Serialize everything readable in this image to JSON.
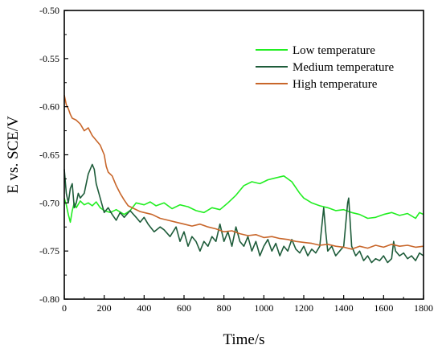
{
  "chart_data": {
    "type": "line",
    "title": "",
    "xlabel": "Time/s",
    "ylabel": "E vs. SCE/V",
    "xlim": [
      0,
      1800
    ],
    "ylim": [
      -0.8,
      -0.5
    ],
    "xticks": [
      0,
      200,
      400,
      600,
      800,
      1000,
      1200,
      1400,
      1600,
      1800
    ],
    "yticks": [
      -0.5,
      -0.55,
      -0.6,
      -0.65,
      -0.7,
      -0.75,
      -0.8
    ],
    "xtick_labels": [
      "0",
      "200",
      "400",
      "600",
      "800",
      "1000",
      "1200",
      "1400",
      "1600",
      "1800"
    ],
    "ytick_labels": [
      "-0.50",
      "-0.55",
      "-0.60",
      "-0.65",
      "-0.70",
      "-0.75",
      "-0.80"
    ],
    "grid": false,
    "legend_position": "top-right",
    "series": [
      {
        "name": "Low temperature",
        "color": "#22ee22",
        "x": [
          0,
          10,
          20,
          30,
          40,
          50,
          60,
          80,
          100,
          120,
          140,
          160,
          180,
          200,
          230,
          260,
          300,
          330,
          360,
          400,
          430,
          460,
          500,
          540,
          580,
          620,
          660,
          700,
          740,
          780,
          820,
          860,
          900,
          940,
          980,
          1020,
          1060,
          1100,
          1140,
          1180,
          1200,
          1240,
          1280,
          1320,
          1360,
          1400,
          1440,
          1480,
          1520,
          1560,
          1600,
          1640,
          1680,
          1720,
          1760,
          1780,
          1800
        ],
        "y": [
          -0.695,
          -0.702,
          -0.712,
          -0.72,
          -0.708,
          -0.7,
          -0.705,
          -0.698,
          -0.702,
          -0.7,
          -0.703,
          -0.699,
          -0.705,
          -0.708,
          -0.71,
          -0.707,
          -0.712,
          -0.708,
          -0.7,
          -0.702,
          -0.699,
          -0.703,
          -0.7,
          -0.706,
          -0.702,
          -0.704,
          -0.708,
          -0.71,
          -0.705,
          -0.707,
          -0.7,
          -0.692,
          -0.682,
          -0.678,
          -0.68,
          -0.676,
          -0.674,
          -0.672,
          -0.678,
          -0.69,
          -0.695,
          -0.7,
          -0.703,
          -0.705,
          -0.708,
          -0.707,
          -0.71,
          -0.712,
          -0.716,
          -0.715,
          -0.712,
          -0.71,
          -0.713,
          -0.711,
          -0.716,
          -0.71,
          -0.712
        ]
      },
      {
        "name": "Medium temperature",
        "color": "#1e5c3a",
        "x": [
          0,
          10,
          20,
          30,
          40,
          50,
          60,
          70,
          80,
          100,
          120,
          140,
          150,
          160,
          180,
          200,
          220,
          240,
          260,
          280,
          300,
          330,
          360,
          380,
          400,
          420,
          450,
          480,
          500,
          530,
          560,
          580,
          600,
          620,
          640,
          660,
          680,
          700,
          720,
          740,
          760,
          780,
          800,
          820,
          840,
          860,
          880,
          900,
          920,
          940,
          960,
          980,
          1000,
          1020,
          1040,
          1060,
          1080,
          1100,
          1120,
          1140,
          1160,
          1180,
          1200,
          1220,
          1240,
          1260,
          1280,
          1300,
          1310,
          1320,
          1340,
          1360,
          1380,
          1400,
          1420,
          1425,
          1440,
          1460,
          1480,
          1500,
          1520,
          1540,
          1560,
          1580,
          1600,
          1620,
          1640,
          1650,
          1660,
          1680,
          1700,
          1720,
          1740,
          1760,
          1780,
          1800
        ],
        "y": [
          -0.665,
          -0.69,
          -0.7,
          -0.685,
          -0.68,
          -0.705,
          -0.7,
          -0.69,
          -0.695,
          -0.69,
          -0.67,
          -0.66,
          -0.665,
          -0.68,
          -0.695,
          -0.71,
          -0.705,
          -0.712,
          -0.718,
          -0.71,
          -0.715,
          -0.708,
          -0.715,
          -0.72,
          -0.715,
          -0.722,
          -0.73,
          -0.725,
          -0.728,
          -0.735,
          -0.725,
          -0.74,
          -0.73,
          -0.745,
          -0.735,
          -0.74,
          -0.75,
          -0.74,
          -0.745,
          -0.735,
          -0.74,
          -0.722,
          -0.74,
          -0.73,
          -0.745,
          -0.725,
          -0.74,
          -0.745,
          -0.735,
          -0.75,
          -0.74,
          -0.755,
          -0.745,
          -0.738,
          -0.75,
          -0.742,
          -0.755,
          -0.745,
          -0.75,
          -0.738,
          -0.748,
          -0.752,
          -0.745,
          -0.755,
          -0.748,
          -0.752,
          -0.745,
          -0.705,
          -0.73,
          -0.75,
          -0.745,
          -0.755,
          -0.75,
          -0.745,
          -0.7,
          -0.695,
          -0.745,
          -0.755,
          -0.75,
          -0.76,
          -0.755,
          -0.762,
          -0.758,
          -0.76,
          -0.755,
          -0.762,
          -0.758,
          -0.74,
          -0.75,
          -0.755,
          -0.752,
          -0.758,
          -0.755,
          -0.76,
          -0.752,
          -0.755
        ]
      },
      {
        "name": "High temperature",
        "color": "#c8662a",
        "x": [
          0,
          10,
          20,
          30,
          40,
          60,
          80,
          100,
          120,
          140,
          160,
          180,
          200,
          210,
          220,
          240,
          260,
          280,
          300,
          320,
          350,
          380,
          400,
          440,
          480,
          520,
          560,
          600,
          640,
          680,
          720,
          760,
          800,
          840,
          880,
          920,
          960,
          1000,
          1040,
          1080,
          1120,
          1160,
          1200,
          1240,
          1280,
          1320,
          1360,
          1400,
          1440,
          1480,
          1520,
          1560,
          1600,
          1640,
          1680,
          1720,
          1760,
          1800
        ],
        "y": [
          -0.588,
          -0.598,
          -0.602,
          -0.608,
          -0.612,
          -0.614,
          -0.618,
          -0.625,
          -0.622,
          -0.63,
          -0.635,
          -0.64,
          -0.65,
          -0.662,
          -0.668,
          -0.672,
          -0.682,
          -0.69,
          -0.697,
          -0.703,
          -0.706,
          -0.709,
          -0.71,
          -0.712,
          -0.716,
          -0.718,
          -0.72,
          -0.722,
          -0.724,
          -0.722,
          -0.725,
          -0.727,
          -0.73,
          -0.729,
          -0.732,
          -0.734,
          -0.733,
          -0.736,
          -0.735,
          -0.737,
          -0.738,
          -0.74,
          -0.741,
          -0.742,
          -0.744,
          -0.743,
          -0.745,
          -0.746,
          -0.748,
          -0.745,
          -0.747,
          -0.744,
          -0.746,
          -0.743,
          -0.745,
          -0.744,
          -0.746,
          -0.745
        ]
      }
    ]
  }
}
